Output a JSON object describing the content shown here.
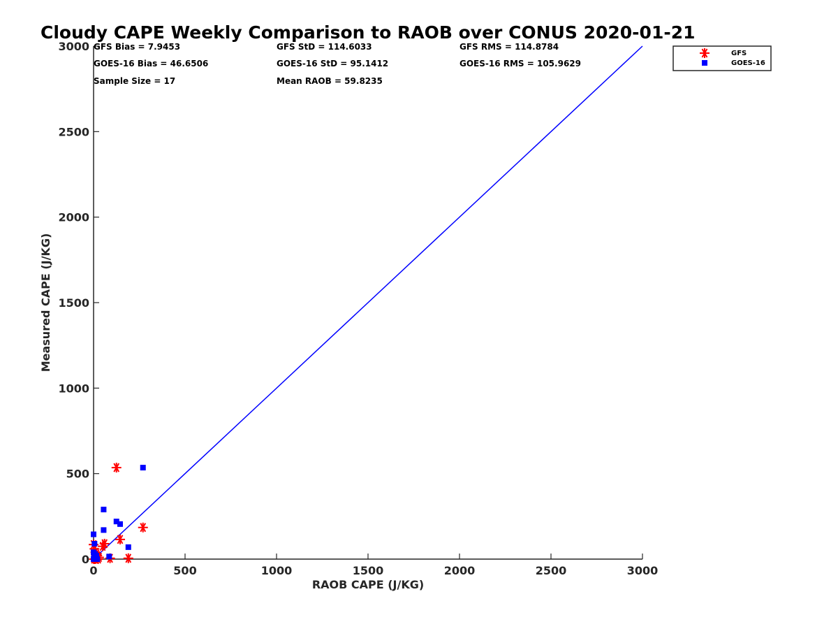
{
  "chart_data": {
    "type": "scatter",
    "title": "Cloudy CAPE Weekly Comparison to RAOB over CONUS 2020-01-21",
    "xlabel": "RAOB CAPE (J/KG)",
    "ylabel": "Measured CAPE (J/KG)",
    "xlim": [
      0,
      3000
    ],
    "ylim": [
      0,
      3000
    ],
    "xticks": [
      0,
      500,
      1000,
      1500,
      2000,
      2500,
      3000
    ],
    "yticks": [
      0,
      500,
      1000,
      1500,
      2000,
      2500,
      3000
    ],
    "grid": false,
    "legend_position": "top-right",
    "stats": [
      "GFS Bias = 7.9453",
      "GFS StD = 114.6033",
      "GFS RMS = 114.8784",
      "GOES-16 Bias = 46.6506",
      "GOES-16 StD = 95.1412",
      "GOES-16 RMS = 105.9629",
      "Sample Size = 17",
      "Mean RAOB = 59.8235"
    ],
    "reference_line": {
      "name": "1:1",
      "x": [
        0,
        3000
      ],
      "y": [
        0,
        3000
      ],
      "color": "#0000ff"
    },
    "series": [
      {
        "name": "GFS",
        "marker": "asterisk",
        "color": "#ff0000",
        "x": [
          125,
          270,
          145,
          60,
          50,
          0,
          5,
          10,
          15,
          20,
          30,
          90,
          190,
          2,
          8,
          12,
          25
        ],
        "y": [
          535,
          185,
          115,
          90,
          75,
          85,
          60,
          40,
          30,
          20,
          10,
          5,
          5,
          0,
          0,
          5,
          0
        ]
      },
      {
        "name": "GOES-16",
        "marker": "square",
        "color": "#0000ff",
        "x": [
          270,
          55,
          125,
          145,
          55,
          0,
          190,
          85,
          5,
          0,
          8,
          10,
          2,
          15,
          20,
          0,
          4
        ],
        "y": [
          535,
          290,
          220,
          205,
          170,
          145,
          70,
          15,
          90,
          40,
          30,
          10,
          5,
          20,
          0,
          0,
          20
        ]
      }
    ]
  }
}
